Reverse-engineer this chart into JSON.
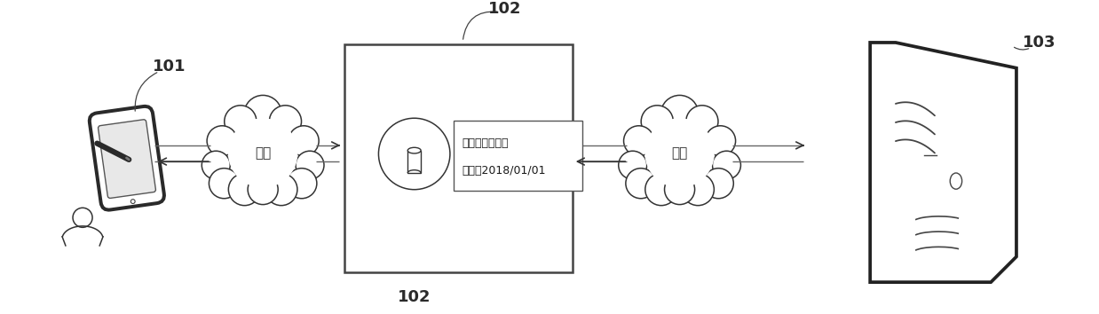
{
  "bg_color": "#ffffff",
  "label_101": "101",
  "label_102_top": "102",
  "label_102_bottom": "102",
  "label_103": "103",
  "network_text": "网络",
  "box_line1": "模式：打卡上报",
  "box_line2": "时间：2018/01/01",
  "fig_width": 12.38,
  "fig_height": 3.54,
  "dpi": 100
}
